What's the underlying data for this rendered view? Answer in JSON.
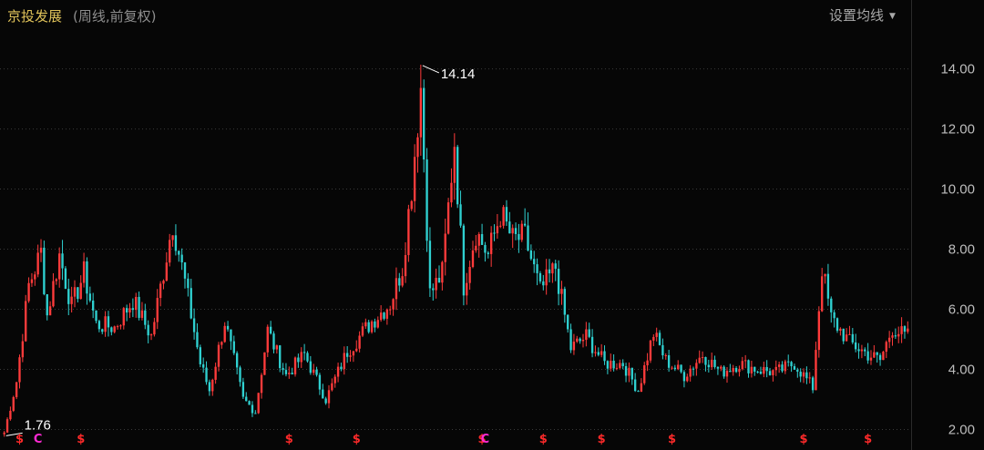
{
  "header": {
    "stock_name": "京投发展",
    "subtitle": "(周线,前复权)",
    "ma_settings_label": "设置均线"
  },
  "colors": {
    "up": "#ff3b3b",
    "down": "#2fd0d0",
    "grid": "#3a3a3a",
    "axis_text": "#bdbdbd",
    "annotation": "#ffffff",
    "event_red": "#ff2a2a",
    "event_magenta": "#ff2ad4"
  },
  "chart_data": {
    "type": "candlestick",
    "ylim": [
      1.5,
      15.2
    ],
    "yticks": [
      2.0,
      4.0,
      6.0,
      8.0,
      10.0,
      12.0,
      14.0
    ],
    "ytick_labels": [
      "2.00",
      "4.00",
      "6.00",
      "8.00",
      "10.00",
      "12.00",
      "14.00"
    ],
    "grid": true,
    "annotations": [
      {
        "label": "14.14",
        "value": 14.14,
        "bar_index": 136
      },
      {
        "label": "1.76",
        "value": 1.76,
        "bar_index": 0
      }
    ],
    "price_path": [
      [
        0,
        1.9
      ],
      [
        4,
        3.6
      ],
      [
        8,
        6.8
      ],
      [
        12,
        7.9
      ],
      [
        14,
        5.8
      ],
      [
        18,
        7.8
      ],
      [
        22,
        6.1
      ],
      [
        26,
        7.2
      ],
      [
        30,
        5.5
      ],
      [
        36,
        5.4
      ],
      [
        42,
        6.3
      ],
      [
        48,
        5.1
      ],
      [
        55,
        8.9
      ],
      [
        59,
        6.9
      ],
      [
        64,
        4.2
      ],
      [
        67,
        3.3
      ],
      [
        72,
        5.6
      ],
      [
        78,
        3.0
      ],
      [
        82,
        2.6
      ],
      [
        86,
        5.3
      ],
      [
        92,
        3.8
      ],
      [
        98,
        4.5
      ],
      [
        105,
        3.0
      ],
      [
        112,
        4.6
      ],
      [
        120,
        5.6
      ],
      [
        126,
        6.2
      ],
      [
        130,
        7.4
      ],
      [
        133,
        10.1
      ],
      [
        136,
        13.4
      ],
      [
        139,
        6.5
      ],
      [
        143,
        7.2
      ],
      [
        147,
        11.6
      ],
      [
        150,
        6.8
      ],
      [
        154,
        8.6
      ],
      [
        158,
        7.8
      ],
      [
        162,
        9.2
      ],
      [
        166,
        8.3
      ],
      [
        170,
        8.4
      ],
      [
        175,
        6.6
      ],
      [
        180,
        7.4
      ],
      [
        185,
        4.7
      ],
      [
        190,
        5.1
      ],
      [
        196,
        4.2
      ],
      [
        202,
        4.2
      ],
      [
        207,
        3.3
      ],
      [
        212,
        5.2
      ],
      [
        216,
        4.3
      ],
      [
        222,
        3.8
      ],
      [
        228,
        4.5
      ],
      [
        234,
        3.9
      ],
      [
        240,
        4.2
      ],
      [
        246,
        4.0
      ],
      [
        252,
        3.9
      ],
      [
        258,
        4.2
      ],
      [
        264,
        3.4
      ],
      [
        267,
        7.4
      ],
      [
        270,
        5.7
      ],
      [
        276,
        4.9
      ],
      [
        282,
        4.5
      ],
      [
        286,
        4.3
      ],
      [
        290,
        5.4
      ],
      [
        294,
        5.1
      ]
    ],
    "events": [
      {
        "label": "$",
        "type": "dividend",
        "bar_index": 5
      },
      {
        "label": "C",
        "type": "split",
        "bar_index": 11
      },
      {
        "label": "$",
        "type": "dividend",
        "bar_index": 25
      },
      {
        "label": "$",
        "type": "dividend",
        "bar_index": 93
      },
      {
        "label": "$",
        "type": "dividend",
        "bar_index": 115
      },
      {
        "label": "$",
        "type": "dividend",
        "bar_index": 156
      },
      {
        "label": "C",
        "type": "split",
        "bar_index": 157
      },
      {
        "label": "$",
        "type": "dividend",
        "bar_index": 176
      },
      {
        "label": "$",
        "type": "dividend",
        "bar_index": 195
      },
      {
        "label": "$",
        "type": "dividend",
        "bar_index": 218
      },
      {
        "label": "$",
        "type": "dividend",
        "bar_index": 261
      },
      {
        "label": "$",
        "type": "dividend",
        "bar_index": 282
      }
    ],
    "bars": 296
  }
}
